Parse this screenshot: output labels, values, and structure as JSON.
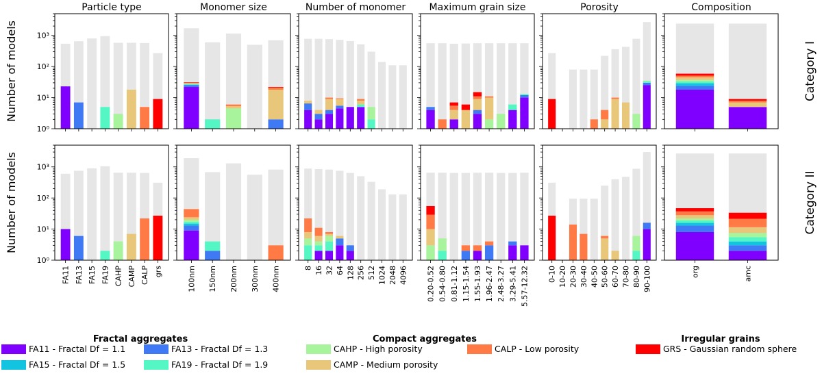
{
  "colors": {
    "total": "#e6e6e6",
    "FA11": "#8000ff",
    "FA13": "#3f79f3",
    "FA15": "#13c4e0",
    "FA19": "#54f6c4",
    "CAHP": "#a8f49c",
    "CAMP": "#e9c77a",
    "CALP": "#ff7a45",
    "GRS": "#ff0000"
  },
  "legend": {
    "groups": [
      {
        "title": "Fractal aggregates",
        "items": [
          {
            "key": "FA11",
            "label": "FA11 - Fractal Df = 1.1"
          },
          {
            "key": "FA13",
            "label": "FA13 - Fractal Df = 1.3"
          },
          {
            "key": "FA15",
            "label": "FA15 - Fractal Df = 1.5"
          },
          {
            "key": "FA19",
            "label": "FA19 - Fractal Df = 1.9"
          }
        ]
      },
      {
        "title": "Compact aggregates",
        "items": [
          {
            "key": "CAHP",
            "label": "CAHP -   High porosity"
          },
          {
            "key": "CAMP",
            "label": "CAMP -   Medium porosity"
          },
          {
            "key": "CALP",
            "label": "CALP -   Low porosity"
          }
        ]
      },
      {
        "title": "Irregular grains",
        "items": [
          {
            "key": "GRS",
            "label": "GRS - Gaussian random sphere"
          }
        ]
      }
    ]
  },
  "chart_data": {
    "type": "bar",
    "scale": "log",
    "ylim": [
      1,
      5000
    ],
    "ylabel": "Number of models",
    "yticks": [
      {
        "value": 1,
        "label": "10⁰"
      },
      {
        "value": 10,
        "label": "10¹"
      },
      {
        "value": 100,
        "label": "10²"
      },
      {
        "value": 1000,
        "label": "10³"
      }
    ],
    "stack_order": [
      "FA11",
      "FA13",
      "FA15",
      "FA19",
      "CAHP",
      "CAMP",
      "CALP",
      "GRS"
    ],
    "panel_titles": [
      "Particle type",
      "Monomer size",
      "Number of monomer",
      "Maximum grain size",
      "Porosity",
      "Composition"
    ],
    "row_labels": [
      "Category I",
      "Category II"
    ],
    "panels": [
      {
        "title": "Particle type",
        "categories": [
          "FA11",
          "FA13",
          "FA15",
          "FA19",
          "CAHP",
          "CAMP",
          "CALP",
          "grs"
        ],
        "rows": [
          {
            "totals": [
              540,
              650,
              800,
              950,
              580,
              580,
              570,
              270
            ],
            "stacks": [
              {
                "FA11": 23
              },
              {
                "FA13": 7
              },
              {},
              {
                "FA19": 5
              },
              {
                "CAHP": 3
              },
              {
                "CAMP": 18
              },
              {
                "CALP": 5
              },
              {
                "GRS": 9
              }
            ]
          },
          {
            "totals": [
              600,
              750,
              900,
              1050,
              650,
              650,
              640,
              310
            ],
            "stacks": [
              {
                "FA11": 10
              },
              {
                "FA13": 6
              },
              {},
              {
                "FA19": 2
              },
              {
                "CAHP": 4
              },
              {
                "CAMP": 7
              },
              {
                "CALP": 22
              },
              {
                "GRS": 27
              }
            ]
          }
        ]
      },
      {
        "title": "Monomer size",
        "categories": [
          "100nm",
          "150nm",
          "200nm",
          "300nm",
          "400nm"
        ],
        "rows": [
          {
            "totals": [
              1700,
              600,
              1150,
              500,
              700
            ],
            "stacks": [
              {
                "FA11": 22,
                "FA13": 3,
                "FA15": 1,
                "FA19": 1,
                "CAHP": 1,
                "CAMP": 1,
                "CALP": 1,
                "GRS": 1
              },
              {
                "FA19": 2
              },
              {
                "CAHP": 4.5,
                "CAMP": 0.8,
                "CALP": 0.7
              },
              {},
              {
                "FA13": 2,
                "CAMP": 16,
                "CALP": 3,
                "GRS": 1
              }
            ]
          },
          {
            "totals": [
              1900,
              680,
              1300,
              560,
              820
            ],
            "stacks": [
              {
                "FA11": 9,
                "FA13": 4,
                "FA15": 2,
                "FA19": 2,
                "CAHP": 3,
                "CAMP": 4,
                "CALP": 20
              },
              {
                "FA13": 2,
                "FA19": 2
              },
              {},
              {},
              {
                "CALP": 3
              }
            ]
          }
        ]
      },
      {
        "title": "Number of monomer",
        "categories": [
          "8",
          "16",
          "32",
          "64",
          "128",
          "256",
          "512",
          "1024",
          "2048",
          "4096"
        ],
        "rows": [
          {
            "totals": [
              780,
              780,
              760,
              720,
              660,
              520,
              300,
              140,
              110,
              110
            ],
            "stacks": [
              {
                "FA11": 4,
                "FA13": 2.5,
                "CAMP": 1.5
              },
              {
                "FA11": 2,
                "FA13": 1,
                "CAMP": 1
              },
              {
                "FA11": 3,
                "FA13": 1,
                "CAMP": 5,
                "CALP": 1
              },
              {
                "FA11": 4.5,
                "FA13": 1,
                "CAMP": 3.5,
                "CALP": 0.5
              },
              {
                "FA11": 5
              },
              {
                "FA11": 5,
                "FA19": 1,
                "CAMP": 2,
                "CALP": 1
              },
              {
                "FA19": 2,
                "CAHP": 3
              },
              {},
              {},
              {}
            ]
          },
          {
            "totals": [
              880,
              850,
              820,
              750,
              640,
              500,
              330,
              190,
              130,
              130
            ],
            "stacks": [
              {
                "FA19": 3,
                "CAHP": 2,
                "CAMP": 3,
                "CALP": 14
              },
              {
                "FA11": 2,
                "FA19": 1,
                "CAHP": 1,
                "CAMP": 2,
                "CALP": 5
              },
              {
                "FA11": 2,
                "FA19": 2,
                "CAHP": 2,
                "CAMP": 1,
                "CALP": 1
              },
              {
                "FA11": 3,
                "FA13": 2,
                "CAMP": 1
              },
              {
                "FA11": 2,
                "FA13": 1
              },
              {},
              {},
              {},
              {},
              {}
            ]
          }
        ]
      },
      {
        "title": "Maximum grain size",
        "categories": [
          "0.20-0.52",
          "0.54-0.80",
          "0.81-1.12",
          "1.15-1.54",
          "1.55-1.93",
          "1.96-2.47",
          "2.48-3.27",
          "3.29-5.41",
          "5.57-12.32"
        ],
        "rows": [
          {
            "totals": [
              560,
              560,
              540,
              550,
              560,
              560,
              560,
              560,
              560
            ],
            "stacks": [
              {
                "FA11": 4,
                "FA13": 1
              },
              {
                "CALP": 2
              },
              {
                "FA11": 2,
                "CAMP": 2,
                "CALP": 1.5,
                "GRS": 1.5
              },
              {
                "CAMP": 4,
                "GRS": 2
              },
              {
                "FA11": 3,
                "FA13": 1,
                "CAMP": 5,
                "CALP": 2,
                "GRS": 4
              },
              {
                "CAHP": 2,
                "CAMP": 8,
                "CALP": 1
              },
              {
                "CAHP": 3
              },
              {
                "FA11": 4,
                "FA19": 2
              },
              {
                "FA11": 10,
                "FA13": 2,
                "FA19": 1
              }
            ]
          },
          {
            "totals": [
              650,
              650,
              640,
              640,
              650,
              650,
              640,
              640,
              650
            ],
            "stacks": [
              {
                "CAHP": 3,
                "CAMP": 7,
                "CALP": 19,
                "GRS": 26
              },
              {
                "CAHP": 3,
                "FA19": 2
              },
              {},
              {
                "FA13": 2,
                "CALP": 1
              },
              {
                "FA11": 2,
                "CALP": 1
              },
              {
                "FA13": 3,
                "CALP": 1
              },
              {},
              {
                "FA11": 3,
                "FA13": 1
              },
              {
                "FA11": 3
              }
            ]
          }
        ]
      },
      {
        "title": "Porosity",
        "categories": [
          "0-10",
          "10-20",
          "20-30",
          "30-40",
          "40-50",
          "50-60",
          "60-70",
          "70-80",
          "80-90",
          "90-100"
        ],
        "rows": [
          {
            "totals": [
              270,
              1,
              80,
              80,
              80,
              220,
              360,
              430,
              780,
              2700
            ],
            "stacks": [
              {
                "GRS": 9
              },
              {},
              {},
              {},
              {
                "CALP": 2
              },
              {
                "CAMP": 2,
                "CALP": 2
              },
              {
                "CAMP": 9,
                "CALP": 1
              },
              {
                "CAMP": 7
              },
              {
                "CAHP": 3
              },
              {
                "FA11": 25,
                "FA13": 5,
                "FA19": 3,
                "CAHP": 2
              }
            ]
          },
          {
            "totals": [
              310,
              1,
              95,
              95,
              95,
              250,
              400,
              480,
              870,
              3000
            ],
            "stacks": [
              {
                "GRS": 27
              },
              {},
              {
                "CALP": 14
              },
              {
                "CALP": 7
              },
              {},
              {
                "CAMP": 5,
                "CALP": 1
              },
              {
                "CAMP": 2
              },
              {},
              {
                "FA19": 2,
                "CAHP": 4
              },
              {
                "FA11": 10,
                "FA13": 6
              }
            ]
          }
        ]
      },
      {
        "title": "Composition",
        "categories": [
          "org",
          "amc"
        ],
        "rows": [
          {
            "totals": [
              2400,
              2400
            ],
            "stacks": [
              {
                "FA11": 18,
                "FA13": 6,
                "FA15": 5,
                "FA19": 4,
                "CAHP": 4,
                "CAMP": 8,
                "CALP": 6,
                "GRS": 8
              },
              {
                "FA11": 5,
                "CAMP": 2,
                "CALP": 1,
                "GRS": 1
              }
            ]
          },
          {
            "totals": [
              2700,
              2700
            ],
            "stacks": [
              {
                "FA11": 8,
                "FA13": 5,
                "FA15": 3,
                "FA19": 3,
                "CAHP": 3,
                "CAMP": 6,
                "CALP": 9,
                "GRS": 10
              },
              {
                "FA11": 2,
                "FA13": 1,
                "FA15": 1,
                "FA19": 1.5,
                "CAHP": 2,
                "CAMP": 4,
                "CALP": 10,
                "GRS": 12
              }
            ]
          }
        ]
      }
    ]
  }
}
